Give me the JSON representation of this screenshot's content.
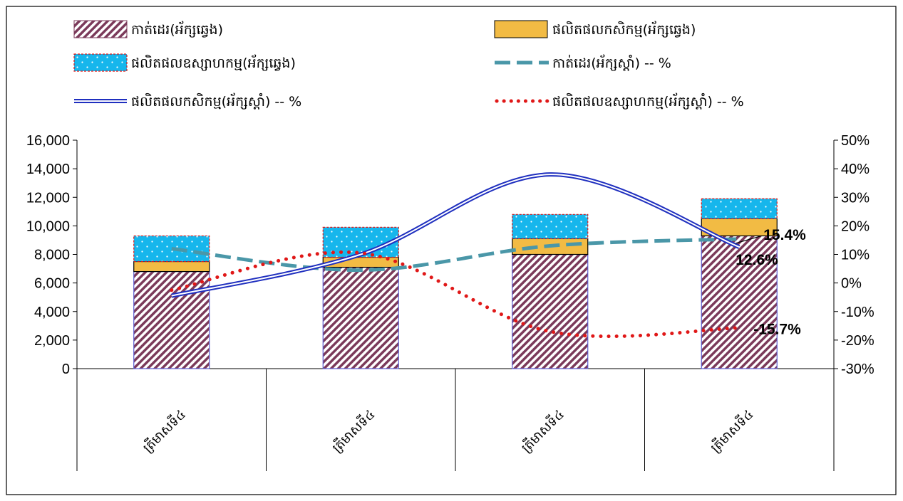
{
  "chart_data": {
    "type": "bar",
    "categories": [
      "ត្រីមាសទី៤",
      "ត្រីមាសទី៤",
      "ត្រីមាសទី៤",
      "ត្រីមាសទី៤"
    ],
    "y_left": {
      "min": 0,
      "max": 16000,
      "step": 2000,
      "tick_labels": [
        "0",
        "2,000",
        "4,000",
        "6,000",
        "8,000",
        "10,000",
        "12,000",
        "14,000",
        "16,000"
      ]
    },
    "y_right": {
      "min": -30,
      "max": 50,
      "step": 10,
      "tick_labels": [
        "-30%",
        "-20%",
        "-10%",
        "0%",
        "10%",
        "20%",
        "30%",
        "40%",
        "50%"
      ]
    },
    "bar_series": [
      {
        "name": "កាត់ដេរ(អ័ក្សឆ្វេង)",
        "values": [
          6800,
          7100,
          8000,
          9300
        ],
        "color": "#7b3a5a",
        "pattern": "diagonal-stripes"
      },
      {
        "name": "ផលិតផលកសិកម្ម(អ័ក្សឆ្វេង)",
        "values": [
          700,
          700,
          1100,
          1200
        ],
        "color": "#f2bb44",
        "pattern": "solid"
      },
      {
        "name": "ផលិតផលឧស្សាហកម្ម(អ័ក្សឆ្វេង)",
        "values": [
          1800,
          2100,
          1700,
          1400
        ],
        "color": "#16b6ec",
        "pattern": "dots"
      }
    ],
    "line_series": [
      {
        "name": "កាត់ដេរ(អ័ក្សស្តាំ) -- %",
        "values": [
          12,
          4.5,
          13,
          15.4
        ],
        "color": "#4a97a8",
        "style": "dashed"
      },
      {
        "name": "ផលិតផលកសិកម្ម(អ័ក្សស្តាំ) -- %",
        "values": [
          -4.5,
          10,
          38,
          12.6
        ],
        "color": "#1f2fbf",
        "style": "double"
      },
      {
        "name": "ផលិតផលឧស្សាហកម្ម(អ័ក្សស្តាំ) -- %",
        "values": [
          -2.5,
          10.5,
          -17,
          -15.7
        ],
        "color": "#e01818",
        "style": "dotted"
      }
    ],
    "data_labels": [
      {
        "text": "15.4%",
        "series": "កាត់ដេរ(អ័ក្សស្តាំ) -- %",
        "category_index": 3
      },
      {
        "text": "12.6%",
        "series": "ផលិតផលកសិកម្ម(អ័ក្សស្តាំ) -- %",
        "category_index": 3
      },
      {
        "text": "-15.7%",
        "series": "ផលិតផលឧស្សាហកម្ម(អ័ក្សស្តាំ) -- %",
        "category_index": 3
      }
    ],
    "legend_position": "top",
    "grid": false,
    "title": "",
    "xlabel": "",
    "ylabel": ""
  }
}
